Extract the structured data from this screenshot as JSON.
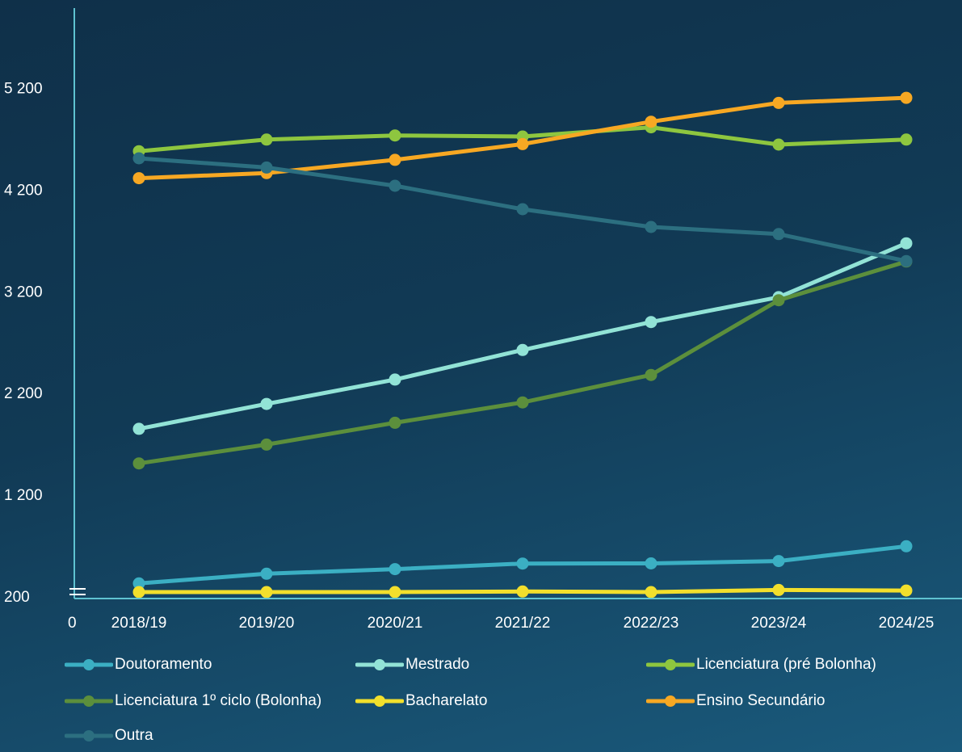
{
  "chart_data": {
    "type": "line",
    "categories": [
      "2018/19",
      "2019/20",
      "2020/21",
      "2021/22",
      "2022/23",
      "2023/24",
      "2024/25"
    ],
    "y_ticks": [
      "200",
      "1 200",
      "2 200",
      "3 200",
      "4 200",
      "5 200"
    ],
    "y_origin_label": "0",
    "axis_break": true,
    "ylim": [
      200,
      5200
    ],
    "grid": false,
    "legend_position": "bottom",
    "series": [
      {
        "name": "Doutoramento",
        "color": "#3bafc3",
        "values": [
          325,
          420,
          465,
          520,
          522,
          545,
          690
        ]
      },
      {
        "name": "Mestrado",
        "color": "#92e3d6",
        "values": [
          1845,
          2090,
          2330,
          2620,
          2895,
          3140,
          3670
        ]
      },
      {
        "name": "Licenciatura (pré Bolonha)",
        "color": "#8ec63f",
        "values": [
          4575,
          4690,
          4730,
          4720,
          4810,
          4640,
          4690
        ]
      },
      {
        "name": "Licenciatura 1º ciclo (Bolonha)",
        "color": "#5c8f3c",
        "values": [
          1505,
          1690,
          1905,
          2105,
          2375,
          3110,
          3490
        ]
      },
      {
        "name": "Bacharelato",
        "color": "#f2df2c",
        "values": [
          240,
          240,
          240,
          245,
          240,
          260,
          255
        ]
      },
      {
        "name": "Ensino Secundário",
        "color": "#f7a823",
        "values": [
          4310,
          4360,
          4490,
          4645,
          4865,
          5050,
          5100
        ]
      },
      {
        "name": "Outra",
        "color": "#2c6f80",
        "values": [
          4505,
          4415,
          4235,
          4005,
          3830,
          3760,
          3495
        ]
      }
    ]
  }
}
